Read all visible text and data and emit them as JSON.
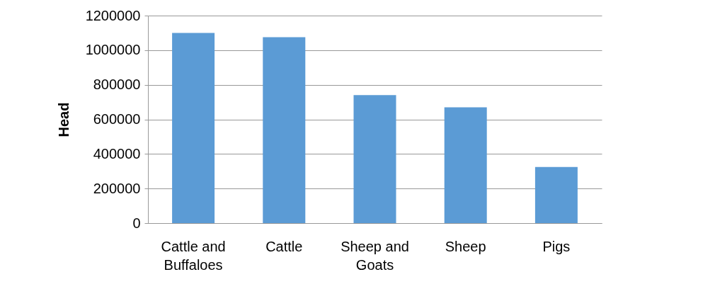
{
  "chart_data": {
    "type": "bar",
    "ylabel": "Head",
    "categories": [
      "Cattle and Buffaloes",
      "Cattle",
      "Sheep and Goats",
      "Sheep",
      "Pigs"
    ],
    "values": [
      1100000,
      1075000,
      740000,
      670000,
      325000
    ],
    "color": "#5b9bd5",
    "ylim": [
      0,
      1200000
    ],
    "yticks": [
      0,
      200000,
      400000,
      600000,
      800000,
      1000000,
      1200000
    ],
    "grid": "y"
  }
}
